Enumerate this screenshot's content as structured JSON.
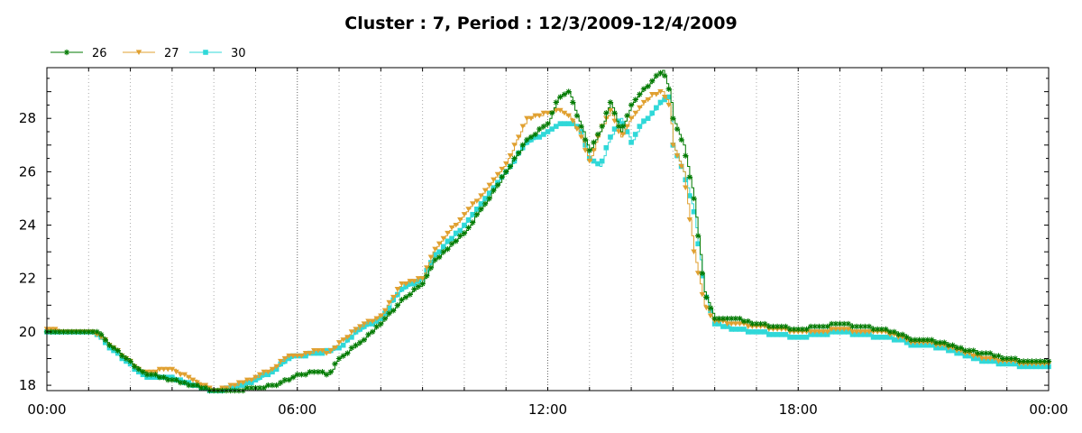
{
  "chart_data": {
    "type": "line",
    "title": "Cluster : 7, Period : 12/3/2009-12/4/2009",
    "xlabel": "",
    "ylabel": "",
    "xlim": [
      0,
      24
    ],
    "ylim": [
      17.8,
      29.9
    ],
    "x_ticks": [
      {
        "value": 0,
        "label": "00:00"
      },
      {
        "value": 6,
        "label": "06:00"
      },
      {
        "value": 12,
        "label": "12:00"
      },
      {
        "value": 18,
        "label": "18:00"
      },
      {
        "value": 24,
        "label": "00:00"
      }
    ],
    "y_ticks": [
      {
        "value": 18,
        "label": "18"
      },
      {
        "value": 20,
        "label": "20"
      },
      {
        "value": 22,
        "label": "22"
      },
      {
        "value": 24,
        "label": "24"
      },
      {
        "value": 26,
        "label": "26"
      },
      {
        "value": 28,
        "label": "28"
      }
    ],
    "grid": "vertical dotted",
    "legend": "top-left",
    "series": [
      {
        "name": "26",
        "color": "#007a00",
        "marker": "star",
        "x": [
          0,
          0.5,
          1.0,
          1.25,
          1.5,
          2.0,
          2.25,
          2.5,
          3.0,
          3.5,
          4.0,
          4.25,
          4.5,
          5.0,
          5.5,
          6.0,
          6.5,
          6.75,
          7.0,
          7.5,
          8.0,
          8.5,
          9.0,
          9.25,
          9.5,
          10.0,
          10.5,
          11.0,
          11.5,
          12.0,
          12.25,
          12.5,
          12.75,
          13.0,
          13.25,
          13.5,
          13.75,
          14.0,
          14.25,
          14.5,
          14.75,
          14.9,
          15.0,
          15.25,
          15.5,
          15.75,
          16.0,
          16.5,
          17.0,
          17.5,
          18.0,
          18.5,
          19.0,
          19.5,
          20.0,
          20.5,
          20.75,
          21.0,
          21.5,
          22.0,
          22.5,
          23.0,
          23.5,
          24.0
        ],
        "y": [
          20.0,
          20.0,
          20.0,
          20.0,
          19.5,
          18.9,
          18.5,
          18.4,
          18.2,
          18.0,
          17.8,
          17.75,
          17.8,
          17.9,
          18.0,
          18.4,
          18.5,
          18.4,
          19.0,
          19.6,
          20.3,
          21.2,
          21.8,
          22.6,
          23.0,
          23.7,
          24.8,
          26.0,
          27.2,
          27.8,
          28.8,
          29.0,
          27.9,
          26.8,
          27.5,
          28.6,
          27.5,
          28.5,
          29.0,
          29.4,
          29.8,
          29.1,
          28.0,
          27.0,
          25.0,
          21.5,
          20.5,
          20.5,
          20.3,
          20.2,
          20.1,
          20.2,
          20.3,
          20.2,
          20.1,
          19.9,
          19.7,
          19.7,
          19.6,
          19.3,
          19.2,
          19.0,
          18.9,
          18.9
        ]
      },
      {
        "name": "27",
        "color": "#e0a030",
        "marker": "triangle-down",
        "x": [
          0,
          0.5,
          1.0,
          1.25,
          1.5,
          2.0,
          2.25,
          2.5,
          2.75,
          3.0,
          3.5,
          4.0,
          4.5,
          5.0,
          5.5,
          5.75,
          6.0,
          6.5,
          6.75,
          7.0,
          7.5,
          8.0,
          8.5,
          9.0,
          9.25,
          9.5,
          10.0,
          10.5,
          11.0,
          11.5,
          12.0,
          12.25,
          12.5,
          12.75,
          13.0,
          13.25,
          13.5,
          13.75,
          14.0,
          14.25,
          14.5,
          14.75,
          14.9,
          15.0,
          15.25,
          15.5,
          15.75,
          16.0,
          16.5,
          17.0,
          17.5,
          18.0,
          18.5,
          19.0,
          19.5,
          20.0,
          20.5,
          20.75,
          21.0,
          21.5,
          22.0,
          22.5,
          23.0,
          23.5,
          24.0
        ],
        "y": [
          20.1,
          20.0,
          20.0,
          19.9,
          19.5,
          18.9,
          18.5,
          18.5,
          18.6,
          18.6,
          18.2,
          17.8,
          18.0,
          18.3,
          18.7,
          19.1,
          19.1,
          19.3,
          19.2,
          19.6,
          20.2,
          20.6,
          21.8,
          22.0,
          23.0,
          23.5,
          24.4,
          25.3,
          26.3,
          28.0,
          28.2,
          28.3,
          28.1,
          27.5,
          26.4,
          27.5,
          28.3,
          27.3,
          28.0,
          28.5,
          28.9,
          29.0,
          28.5,
          27.0,
          26.0,
          23.0,
          21.0,
          20.4,
          20.3,
          20.2,
          20.1,
          20.0,
          20.0,
          20.1,
          20.0,
          20.0,
          19.8,
          19.6,
          19.6,
          19.5,
          19.2,
          19.0,
          18.9,
          18.8,
          18.8
        ]
      },
      {
        "name": "30",
        "color": "#30d8d8",
        "marker": "square",
        "x": [
          0,
          0.5,
          1.0,
          1.25,
          1.5,
          2.0,
          2.25,
          2.5,
          3.0,
          3.5,
          4.0,
          4.5,
          5.0,
          5.5,
          5.75,
          6.0,
          6.5,
          6.75,
          7.0,
          7.5,
          8.0,
          8.5,
          9.0,
          9.25,
          9.5,
          10.0,
          10.5,
          11.0,
          11.5,
          12.0,
          12.25,
          12.5,
          12.75,
          13.0,
          13.25,
          13.5,
          13.75,
          14.0,
          14.25,
          14.5,
          14.75,
          14.9,
          15.0,
          15.25,
          15.5,
          15.75,
          16.0,
          16.5,
          17.0,
          17.5,
          18.0,
          18.5,
          19.0,
          19.5,
          20.0,
          20.5,
          20.75,
          21.0,
          21.5,
          22.0,
          22.5,
          23.0,
          23.5,
          24.0
        ],
        "y": [
          20.0,
          20.0,
          20.0,
          19.9,
          19.4,
          18.8,
          18.4,
          18.3,
          18.3,
          18.0,
          17.8,
          17.9,
          18.2,
          18.6,
          19.0,
          19.1,
          19.2,
          19.3,
          19.4,
          20.1,
          20.5,
          21.6,
          22.0,
          22.8,
          23.2,
          24.0,
          25.0,
          26.0,
          27.1,
          27.5,
          27.8,
          27.8,
          27.7,
          26.5,
          26.2,
          27.3,
          28.0,
          27.1,
          27.8,
          28.2,
          28.7,
          28.8,
          27.0,
          26.0,
          24.5,
          21.5,
          20.3,
          20.1,
          20.0,
          19.9,
          19.8,
          19.9,
          20.0,
          19.9,
          19.8,
          19.7,
          19.5,
          19.5,
          19.4,
          19.1,
          18.9,
          18.8,
          18.7,
          18.7
        ]
      }
    ]
  }
}
